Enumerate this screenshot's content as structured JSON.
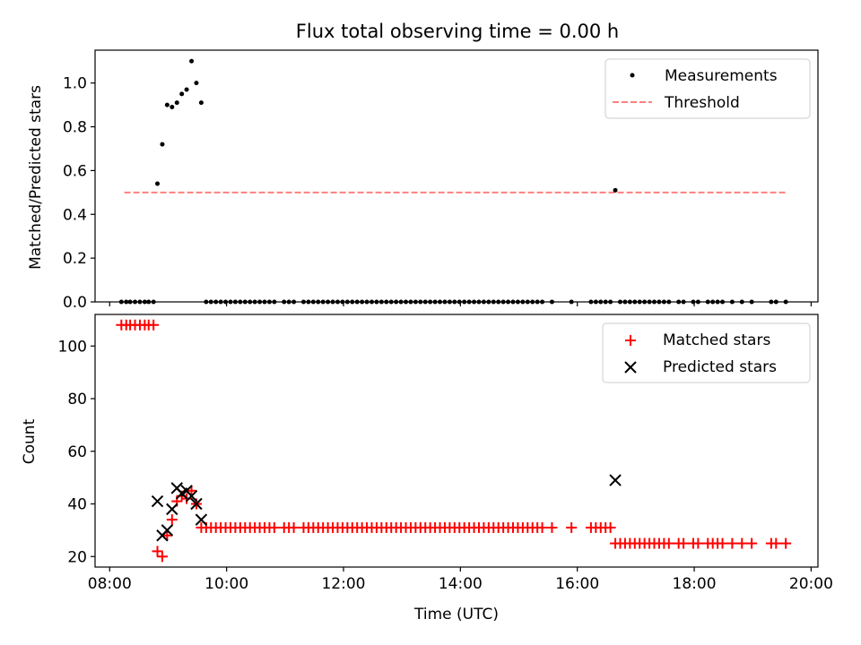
{
  "chart_data": [
    {
      "type": "scatter",
      "title": "Flux total observing time = 0.00 h",
      "xlabel": "",
      "ylabel": "Matched/Predicted stars",
      "xlim": [
        "07:45",
        "20:07"
      ],
      "ylim": [
        0.0,
        1.15
      ],
      "xticks": [
        "08:00",
        "10:00",
        "12:00",
        "14:00",
        "16:00",
        "18:00",
        "20:00"
      ],
      "xtick_labels_visible": false,
      "yticks": [
        "0.0",
        "0.2",
        "0.4",
        "0.6",
        "0.8",
        "1.0"
      ],
      "grid": false,
      "legend_position": "top-right",
      "series": [
        {
          "name": "Measurements",
          "kind": "scatter",
          "marker": "dot",
          "color": "#000000",
          "points": [
            [
              "08:12",
              0.0
            ],
            [
              "08:17",
              0.0
            ],
            [
              "08:21",
              0.0
            ],
            [
              "08:26",
              0.0
            ],
            [
              "08:31",
              0.0
            ],
            [
              "08:36",
              0.0
            ],
            [
              "08:40",
              0.0
            ],
            [
              "08:45",
              0.0
            ],
            [
              "08:49",
              0.54
            ],
            [
              "08:54",
              0.72
            ],
            [
              "08:59",
              0.9
            ],
            [
              "09:04",
              0.89
            ],
            [
              "09:09",
              0.91
            ],
            [
              "09:14",
              0.95
            ],
            [
              "09:19",
              0.97
            ],
            [
              "09:24",
              1.1
            ],
            [
              "09:29",
              1.0
            ],
            [
              "09:34",
              0.91
            ],
            [
              "09:39",
              0.0
            ],
            [
              "09:44",
              0.0
            ],
            [
              "09:49",
              0.0
            ],
            [
              "09:54",
              0.0
            ],
            [
              "09:59",
              0.0
            ],
            [
              "10:04",
              0.0
            ],
            [
              "10:09",
              0.0
            ],
            [
              "10:14",
              0.0
            ],
            [
              "10:19",
              0.0
            ],
            [
              "10:24",
              0.0
            ],
            [
              "10:29",
              0.0
            ],
            [
              "10:34",
              0.0
            ],
            [
              "10:39",
              0.0
            ],
            [
              "10:44",
              0.0
            ],
            [
              "10:49",
              0.0
            ],
            [
              "10:59",
              0.0
            ],
            [
              "11:04",
              0.0
            ],
            [
              "11:09",
              0.0
            ],
            [
              "11:19",
              0.0
            ],
            [
              "11:24",
              0.0
            ],
            [
              "11:29",
              0.0
            ],
            [
              "11:34",
              0.0
            ],
            [
              "11:39",
              0.0
            ],
            [
              "11:44",
              0.0
            ],
            [
              "11:49",
              0.0
            ],
            [
              "11:54",
              0.0
            ],
            [
              "11:59",
              0.0
            ],
            [
              "12:04",
              0.0
            ],
            [
              "12:09",
              0.0
            ],
            [
              "12:14",
              0.0
            ],
            [
              "12:19",
              0.0
            ],
            [
              "12:24",
              0.0
            ],
            [
              "12:29",
              0.0
            ],
            [
              "12:34",
              0.0
            ],
            [
              "12:39",
              0.0
            ],
            [
              "12:44",
              0.0
            ],
            [
              "12:49",
              0.0
            ],
            [
              "12:54",
              0.0
            ],
            [
              "12:59",
              0.0
            ],
            [
              "13:04",
              0.0
            ],
            [
              "13:09",
              0.0
            ],
            [
              "13:14",
              0.0
            ],
            [
              "13:19",
              0.0
            ],
            [
              "13:24",
              0.0
            ],
            [
              "13:29",
              0.0
            ],
            [
              "13:34",
              0.0
            ],
            [
              "13:39",
              0.0
            ],
            [
              "13:44",
              0.0
            ],
            [
              "13:49",
              0.0
            ],
            [
              "13:54",
              0.0
            ],
            [
              "13:59",
              0.0
            ],
            [
              "14:04",
              0.0
            ],
            [
              "14:09",
              0.0
            ],
            [
              "14:14",
              0.0
            ],
            [
              "14:19",
              0.0
            ],
            [
              "14:24",
              0.0
            ],
            [
              "14:29",
              0.0
            ],
            [
              "14:34",
              0.0
            ],
            [
              "14:39",
              0.0
            ],
            [
              "14:44",
              0.0
            ],
            [
              "14:49",
              0.0
            ],
            [
              "14:54",
              0.0
            ],
            [
              "14:59",
              0.0
            ],
            [
              "15:04",
              0.0
            ],
            [
              "15:09",
              0.0
            ],
            [
              "15:14",
              0.0
            ],
            [
              "15:19",
              0.0
            ],
            [
              "15:24",
              0.0
            ],
            [
              "15:34",
              0.0
            ],
            [
              "15:54",
              0.0
            ],
            [
              "16:14",
              0.0
            ],
            [
              "16:19",
              0.0
            ],
            [
              "16:24",
              0.0
            ],
            [
              "16:29",
              0.0
            ],
            [
              "16:34",
              0.0
            ],
            [
              "16:39",
              0.51
            ],
            [
              "16:44",
              0.0
            ],
            [
              "16:49",
              0.0
            ],
            [
              "16:54",
              0.0
            ],
            [
              "16:59",
              0.0
            ],
            [
              "17:04",
              0.0
            ],
            [
              "17:09",
              0.0
            ],
            [
              "17:14",
              0.0
            ],
            [
              "17:19",
              0.0
            ],
            [
              "17:24",
              0.0
            ],
            [
              "17:29",
              0.0
            ],
            [
              "17:34",
              0.0
            ],
            [
              "17:44",
              0.0
            ],
            [
              "17:49",
              0.0
            ],
            [
              "17:59",
              0.0
            ],
            [
              "18:04",
              0.0
            ],
            [
              "18:14",
              0.0
            ],
            [
              "18:19",
              0.0
            ],
            [
              "18:24",
              0.0
            ],
            [
              "18:29",
              0.0
            ],
            [
              "18:39",
              0.0
            ],
            [
              "18:49",
              0.0
            ],
            [
              "18:59",
              0.0
            ],
            [
              "19:19",
              0.0
            ],
            [
              "19:24",
              0.0
            ],
            [
              "19:34",
              0.0
            ]
          ]
        },
        {
          "name": "Threshold",
          "kind": "line",
          "style": "dashed",
          "color": "#ff8080",
          "points": [
            [
              "08:15",
              0.5
            ],
            [
              "19:35",
              0.5
            ]
          ]
        }
      ]
    },
    {
      "type": "scatter",
      "title": "",
      "xlabel": "Time (UTC)",
      "ylabel": "Count",
      "xlim": [
        "07:45",
        "20:07"
      ],
      "ylim": [
        16,
        112
      ],
      "xticks": [
        "08:00",
        "10:00",
        "12:00",
        "14:00",
        "16:00",
        "18:00",
        "20:00"
      ],
      "yticks": [
        "20",
        "40",
        "60",
        "80",
        "100"
      ],
      "grid": false,
      "legend_position": "top-right",
      "series": [
        {
          "name": "Matched stars",
          "kind": "scatter",
          "marker": "plus",
          "color": "#ff0000",
          "points": [
            [
              "08:12",
              108
            ],
            [
              "08:17",
              108
            ],
            [
              "08:21",
              108
            ],
            [
              "08:26",
              108
            ],
            [
              "08:31",
              108
            ],
            [
              "08:36",
              108
            ],
            [
              "08:40",
              108
            ],
            [
              "08:45",
              108
            ],
            [
              "08:49",
              22
            ],
            [
              "08:54",
              20
            ],
            [
              "08:59",
              28
            ],
            [
              "09:04",
              34
            ],
            [
              "09:09",
              41
            ],
            [
              "09:14",
              43
            ],
            [
              "09:19",
              42
            ],
            [
              "09:24",
              45
            ],
            [
              "09:29",
              40
            ],
            [
              "09:34",
              31
            ],
            [
              "09:39",
              31
            ],
            [
              "09:44",
              31
            ],
            [
              "09:49",
              31
            ],
            [
              "09:54",
              31
            ],
            [
              "09:59",
              31
            ],
            [
              "10:04",
              31
            ],
            [
              "10:09",
              31
            ],
            [
              "10:14",
              31
            ],
            [
              "10:19",
              31
            ],
            [
              "10:24",
              31
            ],
            [
              "10:29",
              31
            ],
            [
              "10:34",
              31
            ],
            [
              "10:39",
              31
            ],
            [
              "10:44",
              31
            ],
            [
              "10:49",
              31
            ],
            [
              "10:59",
              31
            ],
            [
              "11:04",
              31
            ],
            [
              "11:09",
              31
            ],
            [
              "11:19",
              31
            ],
            [
              "11:24",
              31
            ],
            [
              "11:29",
              31
            ],
            [
              "11:34",
              31
            ],
            [
              "11:39",
              31
            ],
            [
              "11:44",
              31
            ],
            [
              "11:49",
              31
            ],
            [
              "11:54",
              31
            ],
            [
              "11:59",
              31
            ],
            [
              "12:04",
              31
            ],
            [
              "12:09",
              31
            ],
            [
              "12:14",
              31
            ],
            [
              "12:19",
              31
            ],
            [
              "12:24",
              31
            ],
            [
              "12:29",
              31
            ],
            [
              "12:34",
              31
            ],
            [
              "12:39",
              31
            ],
            [
              "12:44",
              31
            ],
            [
              "12:49",
              31
            ],
            [
              "12:54",
              31
            ],
            [
              "12:59",
              31
            ],
            [
              "13:04",
              31
            ],
            [
              "13:09",
              31
            ],
            [
              "13:14",
              31
            ],
            [
              "13:19",
              31
            ],
            [
              "13:24",
              31
            ],
            [
              "13:29",
              31
            ],
            [
              "13:34",
              31
            ],
            [
              "13:39",
              31
            ],
            [
              "13:44",
              31
            ],
            [
              "13:49",
              31
            ],
            [
              "13:54",
              31
            ],
            [
              "13:59",
              31
            ],
            [
              "14:04",
              31
            ],
            [
              "14:09",
              31
            ],
            [
              "14:14",
              31
            ],
            [
              "14:19",
              31
            ],
            [
              "14:24",
              31
            ],
            [
              "14:29",
              31
            ],
            [
              "14:34",
              31
            ],
            [
              "14:39",
              31
            ],
            [
              "14:44",
              31
            ],
            [
              "14:49",
              31
            ],
            [
              "14:54",
              31
            ],
            [
              "14:59",
              31
            ],
            [
              "15:04",
              31
            ],
            [
              "15:09",
              31
            ],
            [
              "15:14",
              31
            ],
            [
              "15:19",
              31
            ],
            [
              "15:24",
              31
            ],
            [
              "15:34",
              31
            ],
            [
              "15:54",
              31
            ],
            [
              "16:14",
              31
            ],
            [
              "16:19",
              31
            ],
            [
              "16:24",
              31
            ],
            [
              "16:29",
              31
            ],
            [
              "16:34",
              31
            ],
            [
              "16:39",
              25
            ],
            [
              "16:44",
              25
            ],
            [
              "16:49",
              25
            ],
            [
              "16:54",
              25
            ],
            [
              "16:59",
              25
            ],
            [
              "17:04",
              25
            ],
            [
              "17:09",
              25
            ],
            [
              "17:14",
              25
            ],
            [
              "17:19",
              25
            ],
            [
              "17:24",
              25
            ],
            [
              "17:29",
              25
            ],
            [
              "17:34",
              25
            ],
            [
              "17:44",
              25
            ],
            [
              "17:49",
              25
            ],
            [
              "17:59",
              25
            ],
            [
              "18:04",
              25
            ],
            [
              "18:14",
              25
            ],
            [
              "18:19",
              25
            ],
            [
              "18:24",
              25
            ],
            [
              "18:29",
              25
            ],
            [
              "18:39",
              25
            ],
            [
              "18:49",
              25
            ],
            [
              "18:59",
              25
            ],
            [
              "19:19",
              25
            ],
            [
              "19:24",
              25
            ],
            [
              "19:34",
              25
            ]
          ]
        },
        {
          "name": "Predicted stars",
          "kind": "scatter",
          "marker": "cross",
          "color": "#000000",
          "points": [
            [
              "08:49",
              41
            ],
            [
              "08:54",
              28
            ],
            [
              "08:59",
              30
            ],
            [
              "09:04",
              38
            ],
            [
              "09:09",
              46
            ],
            [
              "09:14",
              44
            ],
            [
              "09:19",
              45
            ],
            [
              "09:24",
              43
            ],
            [
              "09:29",
              40
            ],
            [
              "09:34",
              34
            ],
            [
              "16:39",
              49
            ]
          ]
        }
      ]
    }
  ]
}
